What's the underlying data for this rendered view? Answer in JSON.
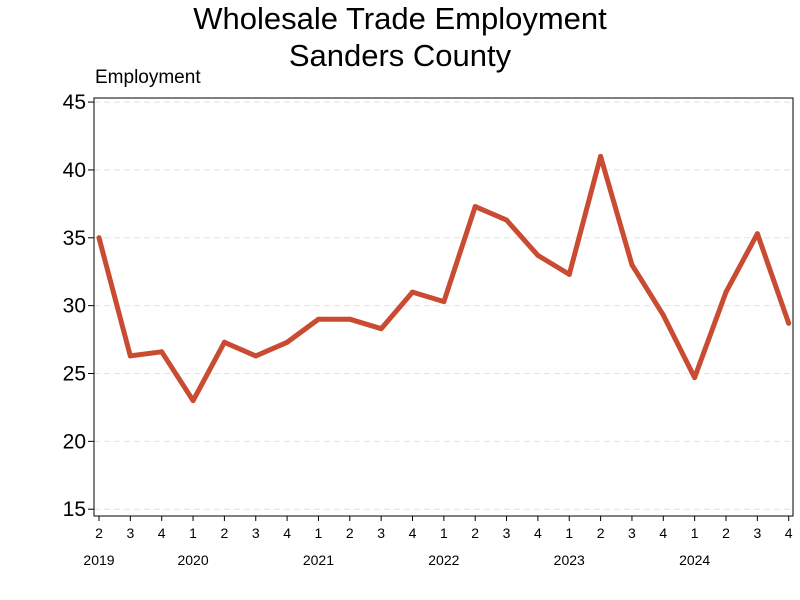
{
  "chart_data": {
    "type": "line",
    "title": [
      "Wholesale Trade Employment",
      "Sanders County"
    ],
    "ylabel": "Employment",
    "xlabel": "",
    "ylim": [
      14.5,
      45.3
    ],
    "yticks": [
      15,
      20,
      25,
      30,
      35,
      40,
      45
    ],
    "grid": "horizontal-dashed",
    "legend": "none",
    "series_color": "#c84b32",
    "x_quarters": [
      "2",
      "3",
      "4",
      "1",
      "2",
      "3",
      "4",
      "1",
      "2",
      "3",
      "4",
      "1",
      "2",
      "3",
      "4",
      "1",
      "2",
      "3",
      "4",
      "1",
      "2",
      "3",
      "4"
    ],
    "year_labels": [
      {
        "label": "2019",
        "at_index": 0
      },
      {
        "label": "2020",
        "at_index": 3
      },
      {
        "label": "2021",
        "at_index": 7
      },
      {
        "label": "2022",
        "at_index": 11
      },
      {
        "label": "2023",
        "at_index": 15
      },
      {
        "label": "2024",
        "at_index": 19
      }
    ],
    "series": [
      {
        "x": [
          "2019 Q2",
          "2019 Q3",
          "2019 Q4",
          "2020 Q1",
          "2020 Q2",
          "2020 Q3",
          "2020 Q4",
          "2021 Q1",
          "2021 Q2",
          "2021 Q3",
          "2021 Q4",
          "2022 Q1",
          "2022 Q2",
          "2022 Q3",
          "2022 Q4",
          "2023 Q1",
          "2023 Q2",
          "2023 Q3",
          "2023 Q4",
          "2024 Q1",
          "2024 Q2",
          "2024 Q3",
          "2024 Q4"
        ],
        "values": [
          35,
          26.3,
          26.6,
          23,
          27.3,
          26.3,
          27.3,
          29,
          29,
          28.3,
          31,
          30.3,
          37.3,
          36.3,
          33.7,
          32.3,
          41,
          33,
          29.3,
          24.7,
          31,
          35.3,
          28.7
        ]
      }
    ]
  }
}
